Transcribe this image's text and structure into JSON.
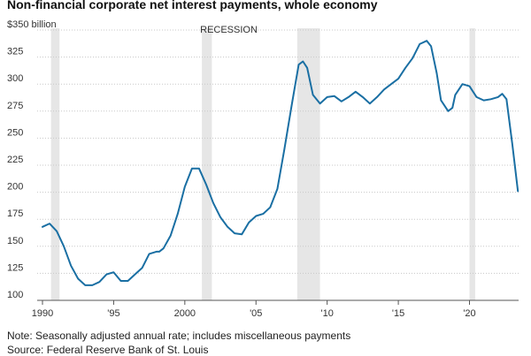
{
  "title": "Non-financial corporate net interest payments, whole economy",
  "note": "Note: Seasonally adjusted annual rate; includes miscellaneous payments",
  "source": "Source: Federal Reserve Bank of St. Louis",
  "colors": {
    "line": "#1a6fa3",
    "recession": "#e6e6e6",
    "grid": "#c8c8c8",
    "axis": "#555555"
  },
  "chart_data": {
    "type": "line",
    "title": "Non-financial corporate net interest payments, whole economy",
    "ylabel": "$350 billion",
    "ylim": [
      100,
      350
    ],
    "xlim": [
      1990,
      2023.5
    ],
    "y_ticks": [
      100,
      125,
      150,
      175,
      200,
      225,
      250,
      275,
      300,
      325,
      350
    ],
    "y_tick_labels": [
      "100",
      "125",
      "150",
      "175",
      "200",
      "225",
      "250",
      "275",
      "300",
      "325",
      "$350 billion"
    ],
    "x_ticks": [
      1990,
      1995,
      2000,
      2005,
      2010,
      2015,
      2020
    ],
    "x_tick_labels": [
      "1990",
      "'95",
      "2000",
      "'05",
      "'10",
      "'15",
      "'20"
    ],
    "grid": true,
    "recession_label": "RECESSION",
    "recessions": [
      [
        1990.6,
        1991.2
      ],
      [
        2001.2,
        2001.9
      ],
      [
        2007.9,
        2009.5
      ],
      [
        2020.0,
        2020.4
      ]
    ],
    "series": [
      {
        "x": [
          1990.0,
          1990.5,
          1991.0,
          1991.5,
          1992.0,
          1992.5,
          1993.0,
          1993.5,
          1994.0,
          1994.5,
          1995.0,
          1995.5,
          1996.0,
          1996.5,
          1997.0,
          1997.5,
          1998.0,
          1998.2,
          1998.5,
          1999.0,
          1999.5,
          2000.0,
          2000.5,
          2001.0,
          2001.5,
          2002.0,
          2002.5,
          2003.0,
          2003.5,
          2004.0,
          2004.5,
          2005.0,
          2005.5,
          2006.0,
          2006.5,
          2007.0,
          2007.5,
          2008.0,
          2008.3,
          2008.6,
          2009.0,
          2009.5,
          2010.0,
          2010.5,
          2011.0,
          2011.5,
          2012.0,
          2012.5,
          2013.0,
          2013.5,
          2014.0,
          2014.5,
          2015.0,
          2015.5,
          2016.0,
          2016.5,
          2017.0,
          2017.3,
          2017.7,
          2018.0,
          2018.5,
          2018.8,
          2019.0,
          2019.5,
          2020.0,
          2020.5,
          2021.0,
          2021.5,
          2022.0,
          2022.3,
          2022.6,
          2023.0,
          2023.4
        ],
        "values": [
          168,
          171,
          164,
          150,
          132,
          120,
          114,
          114,
          117,
          124,
          126,
          118,
          118,
          124,
          130,
          143,
          145,
          145,
          148,
          160,
          180,
          205,
          222,
          222,
          207,
          190,
          177,
          168,
          162,
          161,
          172,
          178,
          180,
          186,
          203,
          240,
          280,
          318,
          321,
          315,
          290,
          282,
          288,
          289,
          284,
          288,
          293,
          288,
          282,
          288,
          295,
          300,
          305,
          315,
          324,
          337,
          340,
          335,
          310,
          285,
          275,
          278,
          290,
          300,
          298,
          288,
          285,
          286,
          288,
          291,
          286,
          245,
          201
        ]
      }
    ]
  }
}
